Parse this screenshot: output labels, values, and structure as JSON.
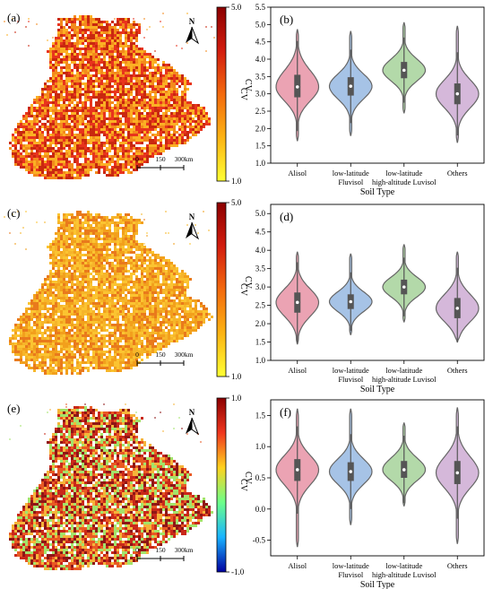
{
  "panels": [
    {
      "map": {
        "label": "(a)",
        "colorbar_label": "CV",
        "colorbar_ticks": [
          "5.0",
          "1.0"
        ],
        "colorbar_colors": [
          "#8b0000",
          "#d21c0e",
          "#f36a0e",
          "#fcb313",
          "#ffff33"
        ],
        "map_colors": [
          "#e8341d",
          "#f38a1c",
          "#fbb024",
          "#c9280f"
        ],
        "scalebar_labels": [
          "0",
          "150",
          "300km"
        ],
        "north": "N"
      },
      "chart_data": {
        "type": "violin",
        "label": "(b)",
        "categories": [
          [
            "Alisol"
          ],
          [
            "low-latitude",
            "Fluvisol"
          ],
          [
            "low-latitude",
            "high-altitude Luvisol"
          ],
          [
            "Others"
          ]
        ],
        "xlabel": "Soil Type",
        "ylabel": "CV",
        "ylim": [
          1.0,
          5.5
        ],
        "yticks": [
          "1.0",
          "1.5",
          "2.0",
          "2.5",
          "3.0",
          "3.5",
          "4.0",
          "4.5",
          "5.0",
          "5.5"
        ],
        "colors": [
          "#eba3b3",
          "#a6c3e6",
          "#b3d9a9",
          "#d5b8da"
        ],
        "series": [
          {
            "median": 3.2,
            "q1": 2.9,
            "q3": 3.55,
            "min": 1.65,
            "max": 4.85
          },
          {
            "median": 3.22,
            "q1": 2.95,
            "q3": 3.48,
            "min": 1.8,
            "max": 4.8
          },
          {
            "median": 3.68,
            "q1": 3.45,
            "q3": 3.92,
            "min": 2.45,
            "max": 5.05
          },
          {
            "median": 3.0,
            "q1": 2.7,
            "q3": 3.3,
            "min": 1.6,
            "max": 4.95
          }
        ]
      }
    },
    {
      "map": {
        "label": "(c)",
        "colorbar_label": "CV",
        "colorbar_ticks": [
          "5.0",
          "1.0"
        ],
        "colorbar_colors": [
          "#8b0000",
          "#d21c0e",
          "#f36a0e",
          "#fcb313",
          "#ffff33"
        ],
        "map_colors": [
          "#f2a01c",
          "#f6b52a",
          "#e97a1c",
          "#fbc431"
        ],
        "scalebar_labels": [
          "0",
          "150",
          "300km"
        ],
        "north": "N"
      },
      "chart_data": {
        "type": "violin",
        "label": "(d)",
        "categories": [
          [
            "Alisol"
          ],
          [
            "low-latitude",
            "Fluvisol"
          ],
          [
            "low-latitude",
            "high-altitude Luvisol"
          ],
          [
            "Others"
          ]
        ],
        "xlabel": "Soil Type",
        "ylabel": "CV",
        "ylim": [
          1.0,
          5.25
        ],
        "yticks": [
          "1.0",
          "1.5",
          "2.0",
          "2.5",
          "3.0",
          "3.5",
          "4.0",
          "4.5",
          "5.0"
        ],
        "colors": [
          "#eba3b3",
          "#a6c3e6",
          "#b3d9a9",
          "#d5b8da"
        ],
        "series": [
          {
            "median": 2.58,
            "q1": 2.3,
            "q3": 2.85,
            "min": 1.45,
            "max": 3.95
          },
          {
            "median": 2.6,
            "q1": 2.4,
            "q3": 2.8,
            "min": 1.7,
            "max": 3.9
          },
          {
            "median": 3.0,
            "q1": 2.8,
            "q3": 3.2,
            "min": 2.05,
            "max": 4.15
          },
          {
            "median": 2.42,
            "q1": 2.15,
            "q3": 2.7,
            "min": 1.5,
            "max": 3.95
          }
        ]
      }
    },
    {
      "map": {
        "label": "(e)",
        "colorbar_label": "CV",
        "colorbar_ticks": [
          "1.0",
          "-1.0"
        ],
        "colorbar_colors": [
          "#8b0000",
          "#f0361e",
          "#ffd21e",
          "#6cff8a",
          "#19b4ff",
          "#0000a0"
        ],
        "map_colors": [
          "#c9281a",
          "#8e1616",
          "#f5b43a",
          "#e85a24",
          "#a3e36a"
        ],
        "scalebar_labels": [
          "0",
          "150",
          "300km"
        ],
        "north": "N"
      },
      "chart_data": {
        "type": "violin",
        "label": "(f)",
        "categories": [
          [
            "Alisol"
          ],
          [
            "low-latitude",
            "Fluvisol"
          ],
          [
            "low-latitude",
            "high-altitude Luvisol"
          ],
          [
            "Others"
          ]
        ],
        "xlabel": "Soil Type",
        "ylabel": "CV",
        "ylim": [
          -0.75,
          1.75
        ],
        "yticks": [
          "-0.5",
          "0.0",
          "0.5",
          "1.0",
          "1.5"
        ],
        "colors": [
          "#eba3b3",
          "#a6c3e6",
          "#b3d9a9",
          "#d5b8da"
        ],
        "series": [
          {
            "median": 0.63,
            "q1": 0.45,
            "q3": 0.8,
            "min": -0.6,
            "max": 1.6
          },
          {
            "median": 0.6,
            "q1": 0.45,
            "q3": 0.75,
            "min": -0.25,
            "max": 1.6
          },
          {
            "median": 0.63,
            "q1": 0.5,
            "q3": 0.77,
            "min": 0.05,
            "max": 1.38
          },
          {
            "median": 0.58,
            "q1": 0.4,
            "q3": 0.77,
            "min": -0.55,
            "max": 1.62
          }
        ]
      }
    }
  ]
}
